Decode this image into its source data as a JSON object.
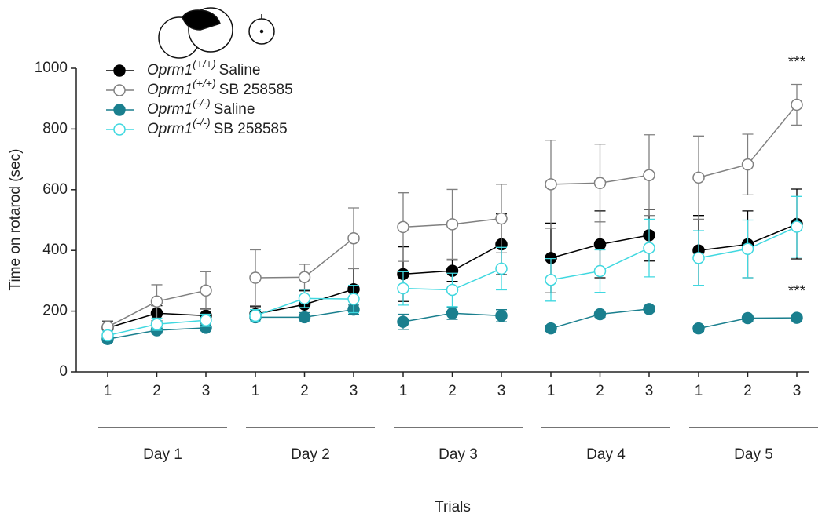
{
  "chart_data": {
    "type": "line",
    "y_label": "Time on rotarod (sec)",
    "x_label": "Trials",
    "categories": [
      "1",
      "2",
      "3",
      "1",
      "2",
      "3",
      "1",
      "2",
      "3",
      "1",
      "2",
      "3",
      "1",
      "2",
      "3"
    ],
    "groups": [
      "Day 1",
      "Day 2",
      "Day 3",
      "Day 4",
      "Day 5"
    ],
    "ylim": [
      0,
      1000
    ],
    "yticks": [
      0,
      200,
      400,
      600,
      800,
      1000
    ],
    "series": [
      {
        "gene": "Oprm1",
        "genotype": "(+/+)",
        "treatment": "Saline",
        "color": "#000000",
        "marker": "filled",
        "values": [
          145,
          193,
          185,
          190,
          222,
          272,
          322,
          333,
          420,
          375,
          420,
          450,
          400,
          420,
          487
        ],
        "errors": [
          20,
          25,
          25,
          25,
          45,
          70,
          90,
          35,
          100,
          115,
          110,
          85,
          115,
          110,
          115
        ]
      },
      {
        "gene": "Oprm1",
        "genotype": "(+/+)",
        "treatment": "SB 258585",
        "color": "#808080",
        "marker": "open",
        "values": [
          148,
          232,
          268,
          310,
          312,
          440,
          477,
          486,
          505,
          618,
          622,
          648,
          640,
          683,
          880
        ],
        "errors": [
          20,
          55,
          62,
          92,
          42,
          100,
          113,
          115,
          113,
          145,
          128,
          133,
          137,
          100,
          67
        ]
      },
      {
        "gene": "Oprm1",
        "genotype": "(-/-)",
        "treatment": "Saline",
        "color": "#1a7f8e",
        "marker": "filled",
        "values": [
          108,
          137,
          145,
          180,
          180,
          205,
          165,
          193,
          185,
          143,
          190,
          207,
          143,
          177,
          178
        ],
        "errors": [
          10,
          10,
          10,
          15,
          15,
          15,
          25,
          20,
          20,
          10,
          10,
          10,
          10,
          10,
          10
        ]
      },
      {
        "gene": "Oprm1",
        "genotype": "(-/-)",
        "treatment": "SB 258585",
        "color": "#40d8e0",
        "marker": "open",
        "values": [
          120,
          157,
          170,
          185,
          242,
          240,
          275,
          270,
          340,
          303,
          332,
          408,
          375,
          405,
          478
        ],
        "errors": [
          15,
          20,
          20,
          20,
          30,
          45,
          55,
          55,
          70,
          70,
          70,
          95,
          90,
          95,
          100
        ]
      }
    ],
    "annotations": [
      "***",
      "***"
    ]
  }
}
